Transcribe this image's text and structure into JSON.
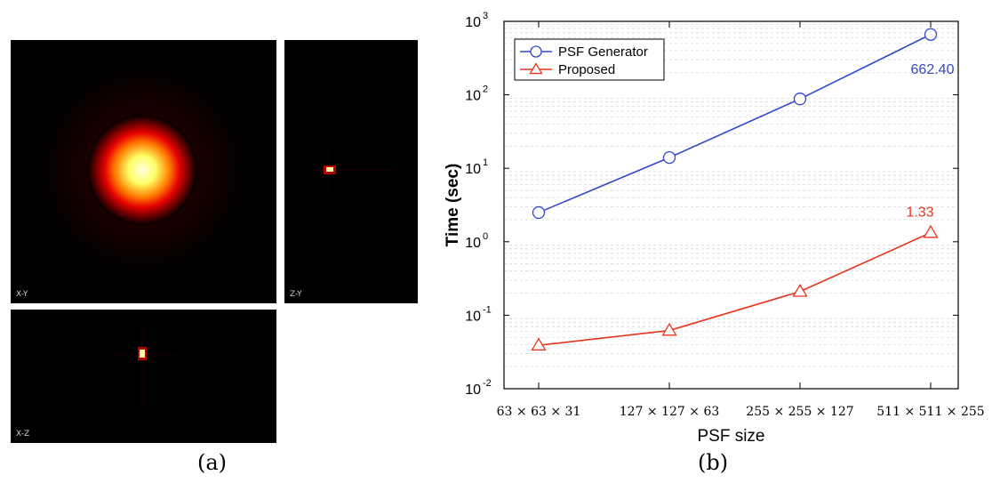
{
  "panels": {
    "xy_label": "X-Y",
    "zy_label": "Z-Y",
    "xz_label": "X-Z",
    "caption_a": "(a)",
    "caption_b": "(b)"
  },
  "colors": {
    "psf_generator": "#3248c8",
    "proposed": "#e8341c"
  },
  "chart_data": {
    "type": "line",
    "x_scale": "categorical",
    "y_scale": "log10",
    "categories": [
      "63 × 63 × 31",
      "127 × 127 × 63",
      "255 × 255 × 127",
      "511 × 511 × 255"
    ],
    "series": [
      {
        "name": "PSF Generator",
        "marker": "circle",
        "values": [
          2.5,
          14,
          88,
          662.4
        ]
      },
      {
        "name": "Proposed",
        "marker": "triangle",
        "values": [
          0.039,
          0.062,
          0.21,
          1.33
        ]
      }
    ],
    "annotations": [
      {
        "series": "PSF Generator",
        "text": "662.40"
      },
      {
        "series": "Proposed",
        "text": "1.33"
      }
    ],
    "xlabel": "PSF size",
    "ylabel": "Time (sec)",
    "ylim": [
      0.01,
      1000
    ],
    "ytick_base": "10",
    "ytick_exponents": [
      "-2",
      "-1",
      "0",
      "1",
      "2",
      "3"
    ],
    "legend_position": "top-left",
    "grid": "minor-dashed"
  }
}
